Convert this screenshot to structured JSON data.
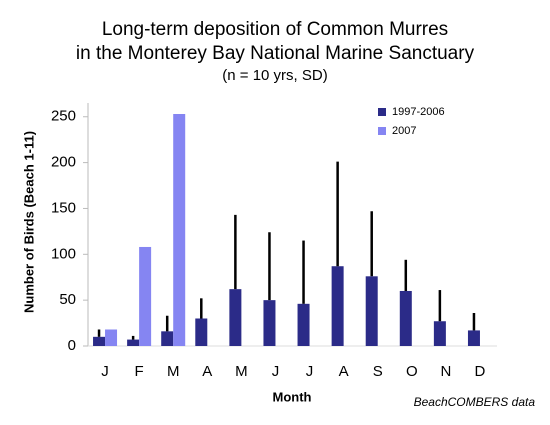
{
  "chart_data": {
    "type": "bar",
    "title": [
      "Long-term deposition of Common Murres",
      "in the Monterey Bay National Marine Sanctuary"
    ],
    "subtitle": "(n = 10 yrs, SD)",
    "x_label": "Month",
    "y_label": "Number of Birds (Beach 1-11)",
    "annotation": "BeachCOMBERS data",
    "categories": [
      "J",
      "F",
      "M",
      "A",
      "M",
      "J",
      "J",
      "A",
      "S",
      "O",
      "N",
      "D"
    ],
    "series": [
      {
        "name": "1997-2006",
        "color": "#2b2b88",
        "values": [
          10,
          7,
          16,
          30,
          62,
          50,
          46,
          87,
          76,
          60,
          27,
          17
        ],
        "errors": [
          8,
          4,
          17,
          22,
          81,
          74,
          69,
          114,
          71,
          34,
          34,
          19
        ]
      },
      {
        "name": "2007",
        "color": "#8585f2",
        "values": [
          18,
          108,
          253,
          null,
          null,
          null,
          null,
          null,
          null,
          null,
          null,
          null
        ]
      }
    ],
    "ylim": [
      0,
      265
    ],
    "yticks": [
      0,
      50,
      100,
      150,
      200,
      250
    ],
    "legend": "top-right"
  }
}
